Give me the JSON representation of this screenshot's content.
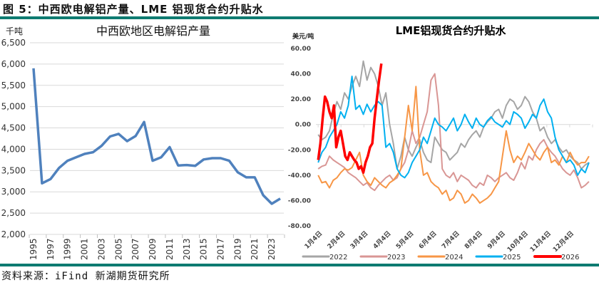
{
  "figure_title": "图 5：中西欧电解铝产量、LME 铝现货合约升贴水",
  "source": "资料来源：iFind 新湖期货研究所",
  "colors": {
    "rule": "#0e7b71",
    "left_line": "#4f81bd"
  },
  "chart_data": [
    {
      "type": "line",
      "title": "中西欧地区电解铝产量",
      "ylabel": "千吨",
      "xlabel": "",
      "ylim": [
        2000,
        6500
      ],
      "yticks": [
        "6,500",
        "6,000",
        "5,500",
        "5,000",
        "4,500",
        "4,000",
        "3,500",
        "3,000",
        "2,500",
        "2,000"
      ],
      "ytick_values": [
        6500,
        6000,
        5500,
        5000,
        4500,
        4000,
        3500,
        3000,
        2500,
        2000
      ],
      "xtick_labels": [
        "1995",
        "1997",
        "1999",
        "2001",
        "2003",
        "2005",
        "2007",
        "2009",
        "2011",
        "2013",
        "2015",
        "2017",
        "2019",
        "2021",
        "2023"
      ],
      "grid": true,
      "series": [
        {
          "name": "中西欧地区电解铝产量",
          "color": "#4f81bd",
          "x": [
            1995,
            1996,
            1997,
            1998,
            1999,
            2000,
            2001,
            2002,
            2003,
            2004,
            2005,
            2006,
            2007,
            2008,
            2009,
            2010,
            2011,
            2012,
            2013,
            2014,
            2015,
            2016,
            2017,
            2018,
            2019,
            2020,
            2021,
            2022,
            2023,
            2024
          ],
          "values": [
            5900,
            3200,
            3300,
            3560,
            3730,
            3810,
            3890,
            3930,
            4080,
            4300,
            4360,
            4190,
            4310,
            4640,
            3730,
            3810,
            4050,
            3620,
            3630,
            3610,
            3760,
            3790,
            3790,
            3730,
            3460,
            3340,
            3340,
            2920,
            2720,
            2840
          ]
        }
      ]
    },
    {
      "type": "line",
      "title": "LME铝现货合约升贴水",
      "ylabel": "美元/吨",
      "xlabel": "",
      "ylim": [
        -80,
        60
      ],
      "yticks": [
        "60.00",
        "40.00",
        "20.00",
        "0.00",
        "-20.00",
        "-40.00",
        "-60.00",
        "-80.00"
      ],
      "ytick_values": [
        60,
        40,
        20,
        0,
        -20,
        -40,
        -60,
        -80
      ],
      "xtick_labels": [
        "1月4日",
        "2月4日",
        "3月4日",
        "4月4日",
        "5月4日",
        "6月4日",
        "7月4日",
        "8月4日",
        "9月4日",
        "10月4日",
        "11月4日",
        "12月4日"
      ],
      "xlim": [
        0,
        365
      ],
      "legend_position": "bottom",
      "series": [
        {
          "name": "2022",
          "color": "#a5a5a5",
          "x": [
            3,
            8,
            13,
            18,
            23,
            28,
            33,
            38,
            43,
            48,
            53,
            58,
            63,
            68,
            73,
            78,
            83,
            88,
            93,
            98,
            103,
            108,
            113,
            118,
            123,
            128,
            133,
            138,
            143,
            148,
            153,
            158,
            163,
            168,
            173,
            178,
            183,
            188,
            193,
            198,
            203,
            208,
            213,
            218,
            223,
            228,
            233,
            238,
            243,
            248,
            253,
            258,
            263,
            268,
            273,
            278,
            283,
            288,
            293,
            298,
            303,
            308,
            313,
            318,
            323,
            328,
            333,
            338,
            343,
            348,
            353,
            358,
            363
          ],
          "values": [
            -8,
            -12,
            -10,
            -5,
            8,
            18,
            12,
            25,
            20,
            30,
            38,
            30,
            50,
            35,
            45,
            40,
            30,
            15,
            25,
            0,
            -15,
            -35,
            -25,
            -10,
            -20,
            -25,
            -18,
            -12,
            -22,
            -28,
            -30,
            -10,
            -15,
            -20,
            -22,
            -28,
            -25,
            -22,
            -15,
            -18,
            -12,
            -8,
            -5,
            -10,
            -2,
            2,
            5,
            10,
            12,
            5,
            15,
            20,
            18,
            12,
            15,
            22,
            18,
            10,
            5,
            -5,
            -2,
            -10,
            -15,
            -12,
            -18,
            -22,
            -20,
            -25,
            -28,
            -30,
            -35,
            -32,
            -30
          ]
        },
        {
          "name": "2023",
          "color": "#d99694",
          "x": [
            3,
            8,
            13,
            18,
            23,
            28,
            33,
            38,
            43,
            48,
            53,
            58,
            63,
            68,
            73,
            78,
            83,
            88,
            93,
            98,
            103,
            108,
            113,
            118,
            123,
            128,
            133,
            138,
            143,
            148,
            153,
            158,
            163,
            168,
            173,
            178,
            183,
            188,
            193,
            198,
            203,
            208,
            213,
            218,
            223,
            228,
            233,
            238,
            243,
            248,
            253,
            258,
            263,
            268,
            273,
            278,
            283,
            288,
            293,
            298,
            303,
            308,
            313,
            318,
            323,
            328,
            333,
            338,
            343,
            348,
            353,
            358,
            363
          ],
          "values": [
            -35,
            -33,
            -32,
            -25,
            -28,
            -30,
            -32,
            -34,
            -38,
            -40,
            -42,
            -45,
            -48,
            -46,
            -50,
            -52,
            -48,
            -45,
            -42,
            -40,
            -44,
            -42,
            -35,
            -30,
            -20,
            -5,
            -15,
            -10,
            0,
            10,
            35,
            40,
            15,
            -35,
            -40,
            -42,
            -38,
            -45,
            -40,
            -42,
            -44,
            -48,
            -50,
            -46,
            -48,
            -40,
            -42,
            -45,
            -42,
            -40,
            -38,
            -42,
            -44,
            -38,
            -30,
            -35,
            -25,
            -28,
            -20,
            -15,
            -12,
            -18,
            -22,
            -25,
            -30,
            -35,
            -38,
            -40,
            -36,
            -42,
            -50,
            -48,
            -45
          ]
        },
        {
          "name": "2024",
          "color": "#f79646",
          "x": [
            3,
            8,
            13,
            18,
            23,
            28,
            33,
            38,
            43,
            48,
            53,
            58,
            63,
            68,
            73,
            78,
            83,
            88,
            93,
            98,
            103,
            108,
            113,
            118,
            123,
            128,
            133,
            138,
            143,
            148,
            153,
            158,
            163,
            168,
            173,
            178,
            183,
            188,
            193,
            198,
            203,
            208,
            213,
            218,
            223,
            228,
            233,
            238,
            243,
            248,
            253,
            258,
            263,
            268,
            273,
            278,
            283,
            288,
            293,
            298,
            303,
            308,
            313,
            318,
            323,
            328,
            333,
            338,
            343,
            348,
            353,
            358,
            363
          ],
          "values": [
            -40,
            -46,
            -45,
            -50,
            -44,
            -42,
            -38,
            -35,
            -36,
            -34,
            -28,
            -22,
            -40,
            -45,
            -48,
            -42,
            -45,
            -48,
            -50,
            -46,
            -44,
            -40,
            -35,
            -10,
            15,
            -5,
            30,
            -20,
            -40,
            -38,
            -45,
            -48,
            -50,
            -55,
            -52,
            -60,
            -58,
            -52,
            -55,
            -62,
            -60,
            -55,
            -58,
            -62,
            -60,
            -58,
            -55,
            -50,
            -45,
            -25,
            -5,
            -20,
            -30,
            -25,
            -28,
            -22,
            -15,
            -20,
            -25,
            -28,
            -22,
            -18,
            -30,
            -28,
            -32,
            -25,
            -30,
            -22,
            -28,
            -32,
            -30,
            -30,
            -25
          ]
        },
        {
          "name": "2025",
          "color": "#00b0f0",
          "x": [
            3,
            8,
            13,
            18,
            23,
            28,
            33,
            38,
            43,
            48,
            53,
            58,
            63,
            68,
            73,
            78,
            83,
            88,
            93,
            98,
            103,
            108,
            113,
            118,
            123,
            128,
            133,
            138,
            143,
            148,
            153,
            158,
            163,
            168,
            173,
            178,
            183,
            188,
            193,
            198,
            203,
            208,
            213,
            218,
            223,
            228,
            233,
            238,
            243,
            248,
            253,
            258,
            263,
            268,
            273,
            278,
            283,
            288,
            293,
            298,
            303,
            308,
            313,
            318,
            323,
            328,
            333,
            338,
            343,
            348,
            353,
            358,
            363
          ],
          "values": [
            -30,
            -22,
            -18,
            -10,
            -5,
            0,
            10,
            5,
            15,
            38,
            12,
            15,
            8,
            16,
            10,
            15,
            18,
            15,
            -18,
            -15,
            -22,
            -35,
            -40,
            -42,
            -38,
            -30,
            -25,
            -20,
            -10,
            -15,
            -5,
            5,
            0,
            -2,
            -5,
            0,
            5,
            -5,
            0,
            8,
            2,
            -3,
            5,
            0,
            -2,
            3,
            6,
            2,
            0,
            -2,
            3,
            0,
            10,
            8,
            5,
            -3,
            2,
            8,
            5,
            15,
            20,
            10,
            5,
            -10,
            -20,
            -25,
            -30,
            -28,
            -32,
            -40,
            -35,
            -38,
            -30
          ]
        },
        {
          "name": "2026",
          "color": "#ff0000",
          "x": [
            3,
            6,
            9,
            12,
            15,
            18,
            21,
            24,
            27,
            30,
            33,
            36,
            39,
            42,
            45,
            48,
            51,
            54,
            57,
            60,
            63,
            66,
            69,
            72,
            75,
            78,
            81,
            84,
            87
          ],
          "values": [
            -28,
            -15,
            5,
            22,
            18,
            10,
            5,
            15,
            -18,
            -10,
            -5,
            -15,
            -25,
            -28,
            -22,
            -25,
            -28,
            -30,
            -35,
            -33,
            -38,
            -30,
            -25,
            -18,
            -15,
            5,
            20,
            35,
            48
          ]
        }
      ]
    }
  ]
}
